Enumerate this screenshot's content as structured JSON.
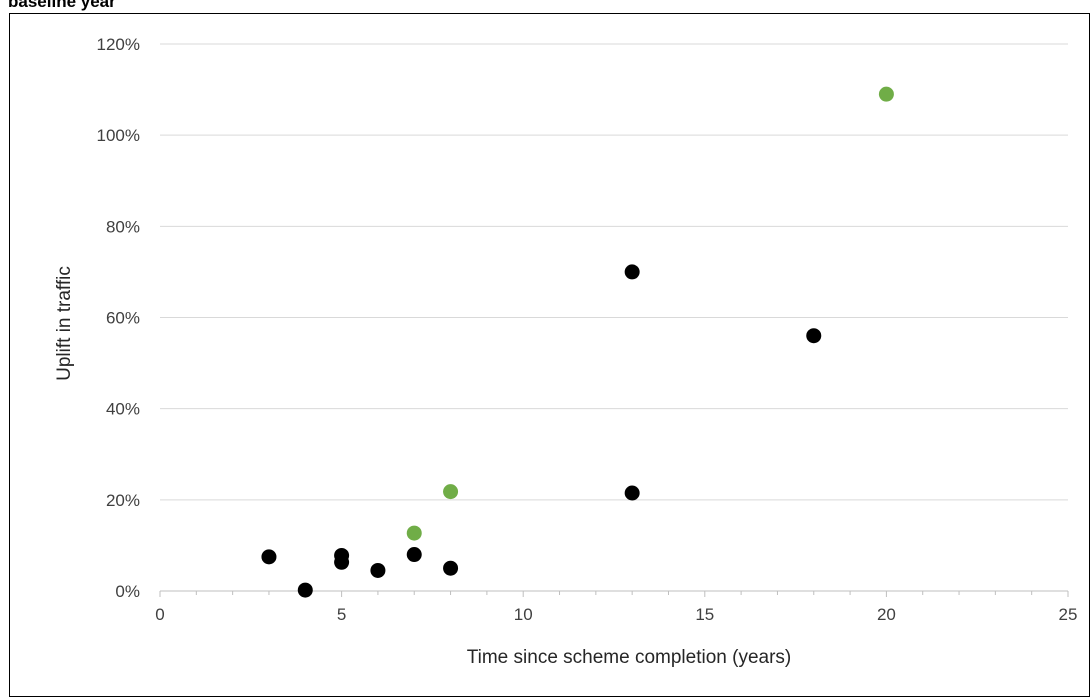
{
  "page": {
    "heading": "baseline year"
  },
  "chart_data": {
    "type": "scatter",
    "title": "",
    "xlabel": "Time since scheme completion (years)",
    "ylabel": "Uplift in traffic",
    "xlim": [
      0,
      25
    ],
    "ylim": [
      0,
      120
    ],
    "x_ticks": [
      0,
      5,
      10,
      15,
      20,
      25
    ],
    "y_ticks": [
      0,
      20,
      40,
      60,
      80,
      100,
      120
    ],
    "x_tick_labels": [
      "0",
      "5",
      "10",
      "15",
      "20",
      "25"
    ],
    "y_tick_labels": [
      "0%",
      "20%",
      "40%",
      "60%",
      "80%",
      "100%",
      "120%"
    ],
    "y_unit": "percent",
    "grid": "horizontal",
    "legend": "none",
    "series": [
      {
        "color": "#000000",
        "points": [
          {
            "x": 3,
            "y": 7.5
          },
          {
            "x": 4,
            "y": 0.2
          },
          {
            "x": 5,
            "y": 7.8
          },
          {
            "x": 5,
            "y": 6.3
          },
          {
            "x": 6,
            "y": 4.5
          },
          {
            "x": 7,
            "y": 8.0
          },
          {
            "x": 8,
            "y": 5.0
          },
          {
            "x": 13,
            "y": 70.0
          },
          {
            "x": 13,
            "y": 21.5
          },
          {
            "x": 18,
            "y": 56.0
          }
        ]
      },
      {
        "color": "#70ad47",
        "points": [
          {
            "x": 7,
            "y": 12.7
          },
          {
            "x": 8,
            "y": 21.8
          },
          {
            "x": 20,
            "y": 109.0
          }
        ]
      }
    ]
  }
}
